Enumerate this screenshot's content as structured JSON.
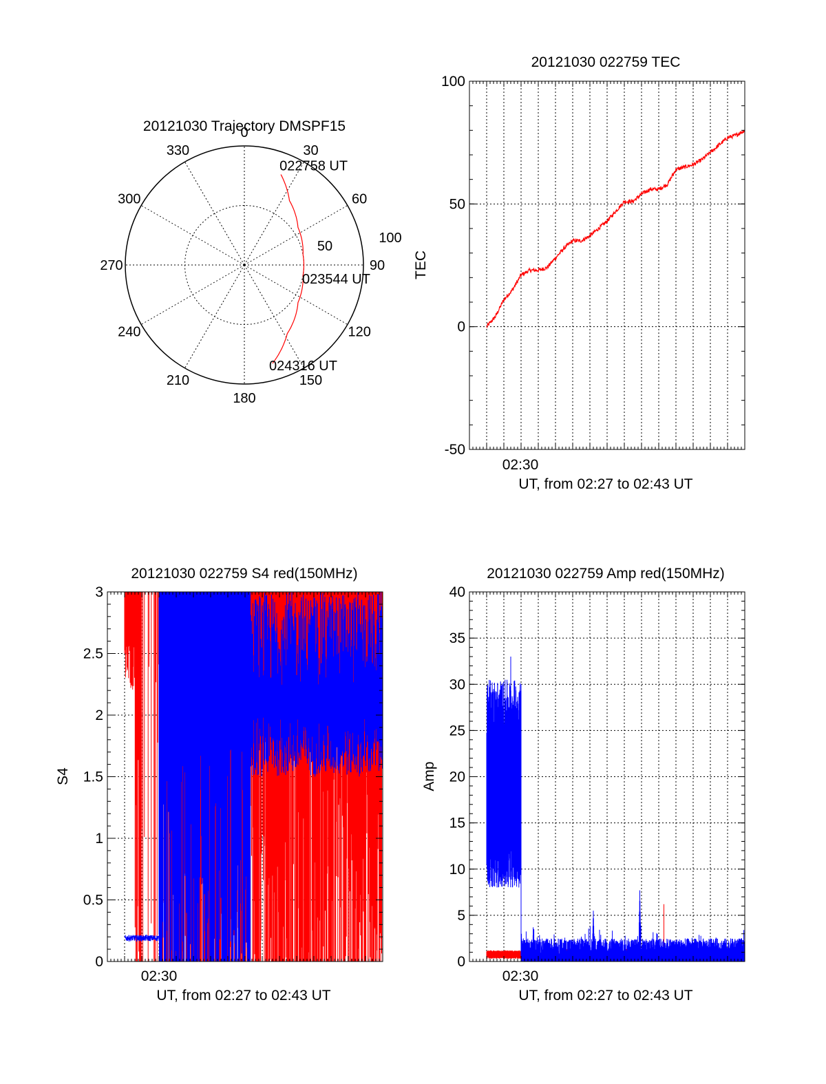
{
  "colors": {
    "red_series": "#ff0000",
    "blue_series": "#0000ff",
    "axis": "#000000",
    "grid": "#000000"
  },
  "chart_data": [
    {
      "id": "trajectory",
      "type": "polar",
      "title": "20121030 Trajectory DMSPF15",
      "azimuth_labels": [
        "0",
        "30",
        "60",
        "90",
        "120",
        "150",
        "180",
        "210",
        "240",
        "270",
        "300",
        "330"
      ],
      "radial_labels": [
        "50",
        "100"
      ],
      "radial_range": [
        0,
        100
      ],
      "grid": true,
      "track": {
        "color": "#ff0000",
        "points": [
          {
            "az": 22,
            "r": 82
          },
          {
            "az": 35,
            "r": 66
          },
          {
            "az": 55,
            "r": 55
          },
          {
            "az": 80,
            "r": 50
          },
          {
            "az": 100,
            "r": 50
          },
          {
            "az": 125,
            "r": 55
          },
          {
            "az": 148,
            "r": 68
          },
          {
            "az": 164,
            "r": 86
          }
        ]
      },
      "annotations": [
        {
          "text": "022758 UT",
          "az": 22,
          "r": 82
        },
        {
          "text": "023544 UT",
          "az": 96,
          "r": 50
        },
        {
          "text": "024316 UT",
          "az": 164,
          "r": 86
        }
      ]
    },
    {
      "id": "tec",
      "type": "line",
      "title": "20121030 022759 TEC",
      "ylabel": "TEC",
      "xlabel": "UT, from 02:27 to 02:43 UT",
      "xtick_label": "02:30",
      "x_range_minutes": [
        2.0,
        18.0
      ],
      "ylim": [
        -50,
        100
      ],
      "yticks": [
        "-50",
        "0",
        "50",
        "100"
      ],
      "grid": true,
      "series": [
        {
          "color": "#ff0000",
          "x": [
            3.0,
            3.5,
            4.0,
            4.5,
            5.0,
            5.5,
            6.0,
            6.5,
            7.0,
            7.5,
            8.0,
            8.5,
            9.0,
            9.5,
            10.0,
            10.5,
            11.0,
            11.5,
            12.0,
            12.5,
            13.0,
            13.5,
            14.0,
            14.5,
            15.0,
            15.5,
            16.0,
            16.5,
            17.0,
            17.5,
            18.0
          ],
          "y": [
            0,
            4,
            11,
            15,
            21,
            23,
            23,
            24,
            28,
            32,
            35,
            35,
            37,
            40,
            43,
            47,
            51,
            51,
            54,
            56,
            56,
            58,
            64,
            65,
            66,
            68,
            71,
            74,
            77,
            78,
            80
          ]
        }
      ]
    },
    {
      "id": "s4",
      "type": "line",
      "title": "20121030 022759 S4 red(150MHz)",
      "ylabel": "S4",
      "xlabel": "UT, from 02:27 to 02:43 UT",
      "xtick_label": "02:30",
      "x_range_minutes": [
        2.0,
        18.0
      ],
      "ylim": [
        0,
        3
      ],
      "yticks": [
        "0",
        "0.5",
        "1",
        "1.5",
        "2",
        "2.5",
        "3"
      ],
      "grid": true,
      "series": [
        {
          "color": "#ff0000",
          "x_start": 3.0,
          "x_end": 18.0,
          "typical_range": [
            0,
            3
          ],
          "style": "dense-vertical"
        },
        {
          "color": "#0000ff",
          "x_start": 3.0,
          "x_end": 5.0,
          "typical_value": 0.19,
          "style": "noisy"
        },
        {
          "color": "#0000ff",
          "x_start": 5.0,
          "x_end": 18.0,
          "typical_range": [
            0,
            3
          ],
          "style": "dense-vertical"
        }
      ]
    },
    {
      "id": "amp",
      "type": "line",
      "title": "20121030 022759 Amp red(150MHz)",
      "ylabel": "Amp",
      "xlabel": "UT, from 02:27 to 02:43 UT",
      "xtick_label": "02:30",
      "x_range_minutes": [
        2.0,
        18.0
      ],
      "ylim": [
        0,
        40
      ],
      "yticks": [
        "0",
        "5",
        "10",
        "15",
        "20",
        "25",
        "30",
        "35",
        "40"
      ],
      "grid": true,
      "series": [
        {
          "color": "#ff0000",
          "x_start": 3.0,
          "x_end": 5.0,
          "typical_range": [
            0.3,
            1.0
          ]
        },
        {
          "color": "#0000ff",
          "x_start": 3.0,
          "x_end": 5.0,
          "typical_range": [
            8,
            30
          ],
          "max": 33
        },
        {
          "color": "#0000ff",
          "x_start": 5.0,
          "x_end": 18.0,
          "typical_range": [
            0.5,
            2.5
          ],
          "spikes": [
            {
              "x": 9.2,
              "y": 5.5
            },
            {
              "x": 11.9,
              "y": 7.7
            }
          ]
        },
        {
          "color": "#ff0000",
          "x_start": 5.0,
          "x_end": 18.0,
          "typical_range": [
            0.5,
            1.5
          ],
          "spikes": [
            {
              "x": 13.3,
              "y": 6.2
            }
          ]
        }
      ]
    }
  ]
}
